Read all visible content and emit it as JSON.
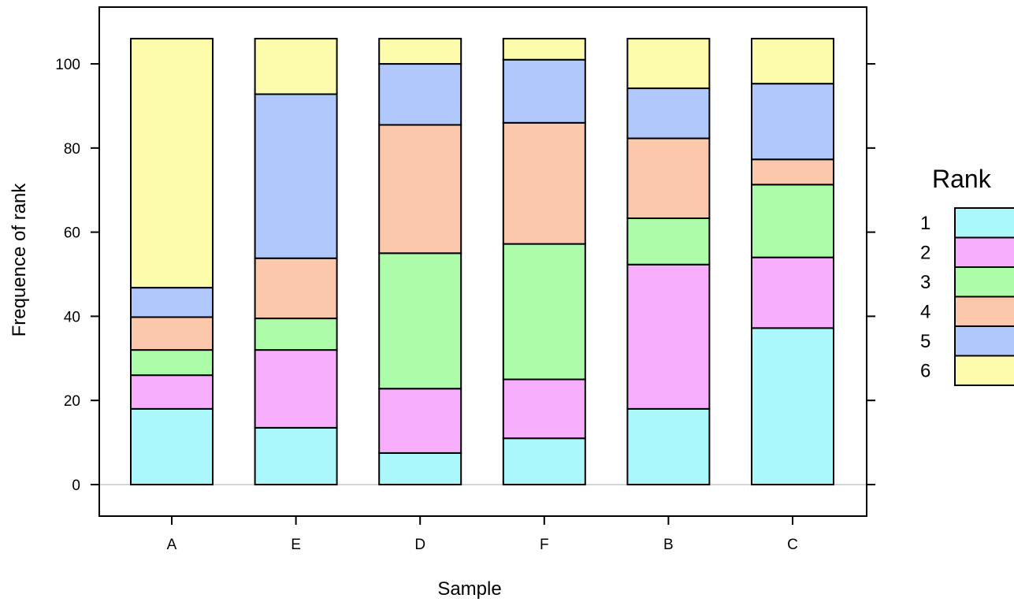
{
  "chart_data": {
    "type": "bar",
    "stacked": true,
    "xlabel": "Sample",
    "ylabel": "Frequence of rank",
    "categories": [
      "A",
      "E",
      "D",
      "F",
      "B",
      "C"
    ],
    "ylim": [
      -7.5,
      113.5
    ],
    "yticks": [
      0,
      20,
      40,
      60,
      80,
      100
    ],
    "legend": {
      "title": "Rank",
      "position": "right"
    },
    "series": [
      {
        "name": "1",
        "color": "#aaf8fc",
        "values": [
          18,
          13.5,
          7.5,
          11,
          18,
          37.2
        ]
      },
      {
        "name": "2",
        "color": "#f7aefc",
        "values": [
          8,
          18.5,
          15.3,
          14,
          34.3,
          16.8
        ]
      },
      {
        "name": "3",
        "color": "#acfca9",
        "values": [
          6,
          7.5,
          32.2,
          32.2,
          11,
          17.3
        ]
      },
      {
        "name": "4",
        "color": "#fcc8ac",
        "values": [
          7.8,
          14.3,
          30.5,
          28.8,
          19,
          6
        ]
      },
      {
        "name": "5",
        "color": "#b0c8fc",
        "values": [
          7,
          39,
          14.5,
          15,
          11.9,
          18
        ]
      },
      {
        "name": "6",
        "color": "#fcfcac",
        "values": [
          59.2,
          13.2,
          6,
          5,
          11.8,
          10.7
        ]
      }
    ]
  }
}
